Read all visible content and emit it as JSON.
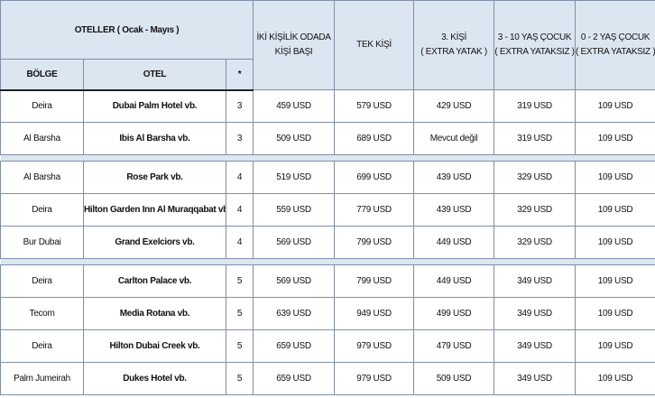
{
  "table": {
    "header": {
      "hotels": "OTELLER ( Ocak - Mayıs )",
      "region": "BÖLGE",
      "hotel": "OTEL",
      "star": "*",
      "prices": [
        [
          "İKİ KİŞİLİK ODADA",
          "KİŞİ BAŞI"
        ],
        [
          "TEK KİŞİ"
        ],
        [
          "3. KİŞİ",
          "( EXTRA YATAK )"
        ],
        [
          "3 - 10 YAŞ ÇOCUK",
          "( EXTRA YATAKSIZ )"
        ],
        [
          "0 - 2 YAŞ ÇOCUK",
          "( EXTRA YATAKSIZ )"
        ]
      ]
    },
    "groups": [
      [
        [
          "Deira",
          "Dubai Palm Hotel vb.",
          "3",
          "459 USD",
          "579 USD",
          "429 USD",
          "319 USD",
          "109 USD"
        ],
        [
          "Al Barsha",
          "Ibis Al Barsha vb.",
          "3",
          "509 USD",
          "689 USD",
          "Mevcut değil",
          "319 USD",
          "109 USD"
        ]
      ],
      [
        [
          "Al Barsha",
          "Rose Park vb.",
          "4",
          "519 USD",
          "699 USD",
          "439 USD",
          "329 USD",
          "109 USD"
        ],
        [
          "Deira",
          "Hilton Garden Inn Al Muraqqabat vb.",
          "4",
          "559 USD",
          "779 USD",
          "439 USD",
          "329 USD",
          "109 USD"
        ],
        [
          "Bur Dubai",
          "Grand Exelciors vb.",
          "4",
          "569 USD",
          "799 USD",
          "449 USD",
          "329 USD",
          "109 USD"
        ]
      ],
      [
        [
          "Deira",
          "Carlton Palace vb.",
          "5",
          "569 USD",
          "799 USD",
          "449 USD",
          "349 USD",
          "109 USD"
        ],
        [
          "Tecom",
          "Media Rotana vb.",
          "5",
          "639 USD",
          "949 USD",
          "499 USD",
          "349 USD",
          "109 USD"
        ],
        [
          "Deira",
          "Hilton Dubai Creek vb.",
          "5",
          "659 USD",
          "979 USD",
          "479 USD",
          "349 USD",
          "109 USD"
        ],
        [
          "Palm Jumeirah",
          "Dukes Hotel vb.",
          "5",
          "659 USD",
          "979 USD",
          "509 USD",
          "349 USD",
          "109 USD"
        ]
      ]
    ]
  }
}
